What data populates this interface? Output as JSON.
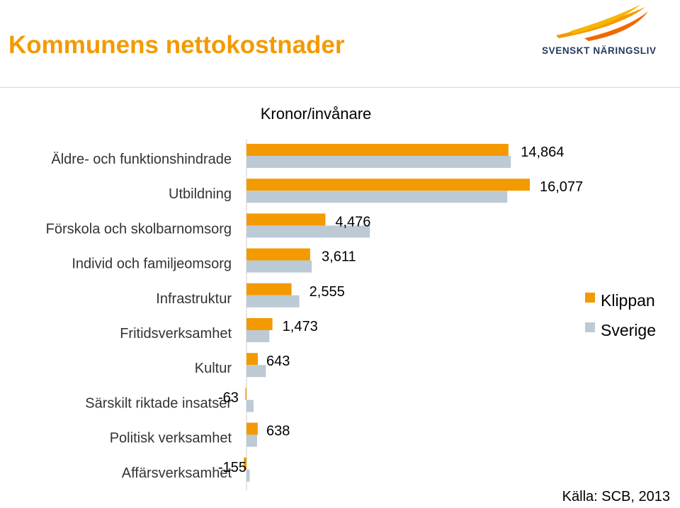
{
  "header": {
    "title": "Kommunens nettokostnader",
    "logo_text": "SVENSKT NÄRINGSLIV"
  },
  "colors": {
    "klippan": "#f39a00",
    "sverige": "#bccad6",
    "title": "#f39a00",
    "logo_text": "#1f3a5a"
  },
  "chart_data": {
    "type": "bar",
    "orientation": "horizontal",
    "unit_label": "Kronor/invånare",
    "categories": [
      "Äldre- och funktionshindrade",
      "Utbildning",
      "Förskola och skolbarnomsorg",
      "Individ och familjeomsorg",
      "Infrastruktur",
      "Fritidsverksamhet",
      "Kultur",
      "Särskilt riktade insatser",
      "Politisk verksamhet",
      "Affärsverksamhet"
    ],
    "series": [
      {
        "name": "Klippan",
        "values": [
          14864,
          16077,
          4476,
          3611,
          2555,
          1473,
          643,
          -63,
          638,
          -155
        ],
        "labels": [
          "14,864",
          "16,077",
          "4,476",
          "3,611",
          "2,555",
          "1,473",
          "643",
          "-63",
          "638",
          "-155"
        ]
      },
      {
        "name": "Sverige",
        "values": [
          15000,
          14800,
          7000,
          3700,
          3000,
          1300,
          1100,
          400,
          600,
          180
        ]
      }
    ],
    "legend_position": "right",
    "grid": false
  },
  "source": "Källa: SCB, 2013"
}
